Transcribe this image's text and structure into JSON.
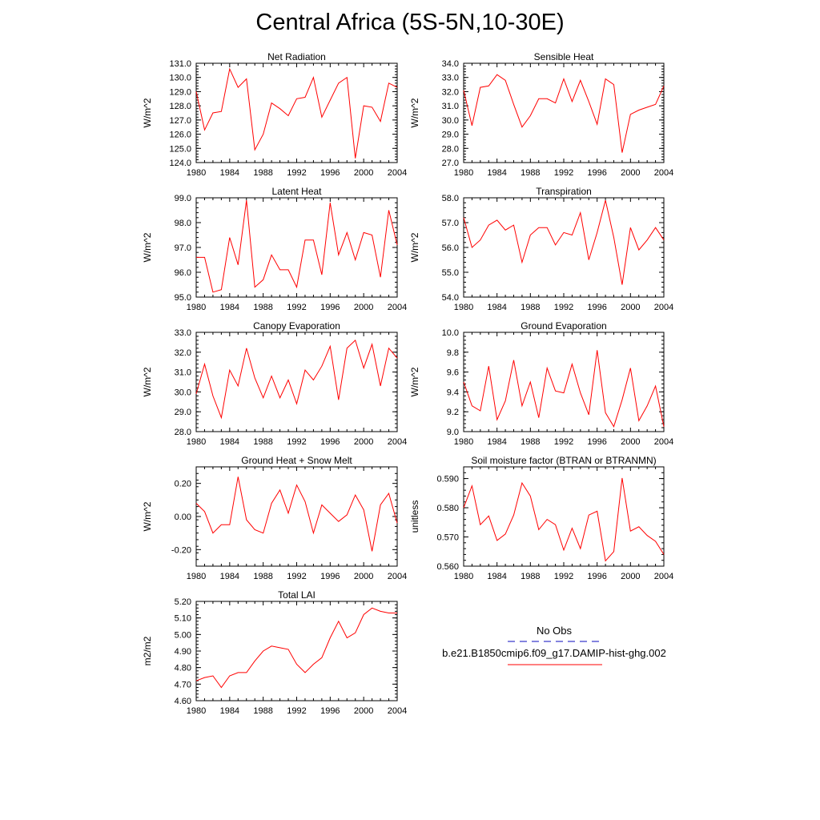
{
  "title": "Central Africa (5S-5N,10-30E)",
  "legend": {
    "obs_label": "No Obs",
    "obs_color": "#3a3acc",
    "model_label": "b.e21.B1850cmip6.f09_g17.DAMIP-hist-ghg.002",
    "model_color": "#ff0000"
  },
  "line_color": "#ff0000",
  "chart_data": [
    {
      "type": "line",
      "title": "Net Radiation",
      "xlabel": "",
      "ylabel": "W/m^2",
      "x": [
        1980,
        1981,
        1982,
        1983,
        1984,
        1985,
        1986,
        1987,
        1988,
        1989,
        1990,
        1991,
        1992,
        1993,
        1994,
        1995,
        1996,
        1997,
        1998,
        1999,
        2000,
        2001,
        2002,
        2003,
        2004
      ],
      "y": [
        129.0,
        126.3,
        127.5,
        127.6,
        130.6,
        129.3,
        129.9,
        124.9,
        126.0,
        128.2,
        127.8,
        127.3,
        128.5,
        128.6,
        130.0,
        127.2,
        128.4,
        129.6,
        130.0,
        124.3,
        128.0,
        127.9,
        126.9,
        129.6,
        129.3
      ],
      "xlim": [
        1980,
        2004
      ],
      "ylim": [
        124.0,
        131.0
      ],
      "xticks": [
        "1980",
        "1984",
        "1988",
        "1992",
        "1996",
        "2000",
        "2004"
      ],
      "yticks": [
        "124.0",
        "125.0",
        "126.0",
        "127.0",
        "128.0",
        "129.0",
        "130.0",
        "131.0"
      ],
      "ytick_values": [
        124,
        125,
        126,
        127,
        128,
        129,
        130,
        131
      ]
    },
    {
      "type": "line",
      "title": "Sensible Heat",
      "xlabel": "",
      "ylabel": "W/m^2",
      "x": [
        1980,
        1981,
        1982,
        1983,
        1984,
        1985,
        1986,
        1987,
        1988,
        1989,
        1990,
        1991,
        1992,
        1993,
        1994,
        1995,
        1996,
        1997,
        1998,
        1999,
        2000,
        2001,
        2002,
        2003,
        2004
      ],
      "y": [
        32.1,
        29.6,
        32.3,
        32.4,
        33.2,
        32.8,
        31.1,
        29.5,
        30.3,
        31.5,
        31.5,
        31.2,
        32.9,
        31.3,
        32.8,
        31.3,
        29.7,
        32.9,
        32.5,
        27.7,
        30.4,
        30.7,
        30.9,
        31.1,
        32.4
      ],
      "xlim": [
        1980,
        2004
      ],
      "ylim": [
        27.0,
        34.0
      ],
      "xticks": [
        "1980",
        "1984",
        "1988",
        "1992",
        "1996",
        "2000",
        "2004"
      ],
      "yticks": [
        "27.0",
        "28.0",
        "29.0",
        "30.0",
        "31.0",
        "32.0",
        "33.0",
        "34.0"
      ],
      "ytick_values": [
        27,
        28,
        29,
        30,
        31,
        32,
        33,
        34
      ]
    },
    {
      "type": "line",
      "title": "Latent Heat",
      "xlabel": "",
      "ylabel": "W/m^2",
      "x": [
        1980,
        1981,
        1982,
        1983,
        1984,
        1985,
        1986,
        1987,
        1988,
        1989,
        1990,
        1991,
        1992,
        1993,
        1994,
        1995,
        1996,
        1997,
        1998,
        1999,
        2000,
        2001,
        2002,
        2003,
        2004
      ],
      "y": [
        96.6,
        96.6,
        95.2,
        95.3,
        97.4,
        96.3,
        98.9,
        95.4,
        95.7,
        96.7,
        96.1,
        96.1,
        95.4,
        97.3,
        97.3,
        95.9,
        98.8,
        96.7,
        97.6,
        96.5,
        97.6,
        97.5,
        95.8,
        98.5,
        97.1
      ],
      "xlim": [
        1980,
        2004
      ],
      "ylim": [
        95.0,
        99.0
      ],
      "xticks": [
        "1980",
        "1984",
        "1988",
        "1992",
        "1996",
        "2000",
        "2004"
      ],
      "yticks": [
        "95.0",
        "96.0",
        "97.0",
        "98.0",
        "99.0"
      ],
      "ytick_values": [
        95,
        96,
        97,
        98,
        99
      ]
    },
    {
      "type": "line",
      "title": "Transpiration",
      "xlabel": "",
      "ylabel": "W/m^2",
      "x": [
        1980,
        1981,
        1982,
        1983,
        1984,
        1985,
        1986,
        1987,
        1988,
        1989,
        1990,
        1991,
        1992,
        1993,
        1994,
        1995,
        1996,
        1997,
        1998,
        1999,
        2000,
        2001,
        2002,
        2003,
        2004
      ],
      "y": [
        57.2,
        56.0,
        56.3,
        56.9,
        57.1,
        56.7,
        56.9,
        55.4,
        56.5,
        56.8,
        56.8,
        56.1,
        56.6,
        56.5,
        57.4,
        55.5,
        56.6,
        57.9,
        56.4,
        54.5,
        56.8,
        55.9,
        56.3,
        56.8,
        56.3
      ],
      "xlim": [
        1980,
        2004
      ],
      "ylim": [
        54.0,
        58.0
      ],
      "xticks": [
        "1980",
        "1984",
        "1988",
        "1992",
        "1996",
        "2000",
        "2004"
      ],
      "yticks": [
        "54.0",
        "55.0",
        "56.0",
        "57.0",
        "58.0"
      ],
      "ytick_values": [
        54,
        55,
        56,
        57,
        58
      ]
    },
    {
      "type": "line",
      "title": "Canopy Evaporation",
      "xlabel": "",
      "ylabel": "W/m^2",
      "x": [
        1980,
        1981,
        1982,
        1983,
        1984,
        1985,
        1986,
        1987,
        1988,
        1989,
        1990,
        1991,
        1992,
        1993,
        1994,
        1995,
        1996,
        1997,
        1998,
        1999,
        2000,
        2001,
        2002,
        2003,
        2004
      ],
      "y": [
        29.9,
        31.4,
        29.8,
        28.7,
        31.1,
        30.3,
        32.2,
        30.7,
        29.7,
        30.8,
        29.7,
        30.6,
        29.4,
        31.1,
        30.6,
        31.3,
        32.3,
        29.6,
        32.2,
        32.6,
        31.2,
        32.4,
        30.3,
        32.2,
        31.7
      ],
      "xlim": [
        1980,
        2004
      ],
      "ylim": [
        28.0,
        33.0
      ],
      "xticks": [
        "1980",
        "1984",
        "1988",
        "1992",
        "1996",
        "2000",
        "2004"
      ],
      "yticks": [
        "28.0",
        "29.0",
        "30.0",
        "31.0",
        "32.0",
        "33.0"
      ],
      "ytick_values": [
        28,
        29,
        30,
        31,
        32,
        33
      ]
    },
    {
      "type": "line",
      "title": "Ground Evaporation",
      "xlabel": "",
      "ylabel": "W/m^2",
      "x": [
        1980,
        1981,
        1982,
        1983,
        1984,
        1985,
        1986,
        1987,
        1988,
        1989,
        1990,
        1991,
        1992,
        1993,
        1994,
        1995,
        1996,
        1997,
        1998,
        1999,
        2000,
        2001,
        2002,
        2003,
        2004
      ],
      "y": [
        9.5,
        9.26,
        9.21,
        9.66,
        9.12,
        9.31,
        9.72,
        9.26,
        9.5,
        9.14,
        9.64,
        9.41,
        9.39,
        9.68,
        9.39,
        9.17,
        9.82,
        9.19,
        9.05,
        9.32,
        9.64,
        9.11,
        9.26,
        9.46,
        9.05
      ],
      "xlim": [
        1980,
        2004
      ],
      "ylim": [
        9.0,
        10.0
      ],
      "xticks": [
        "1980",
        "1984",
        "1988",
        "1992",
        "1996",
        "2000",
        "2004"
      ],
      "yticks": [
        "9.0",
        "9.2",
        "9.4",
        "9.6",
        "9.8",
        "10.0"
      ],
      "ytick_values": [
        9.0,
        9.2,
        9.4,
        9.6,
        9.8,
        10.0
      ]
    },
    {
      "type": "line",
      "title": "Ground Heat + Snow Melt",
      "xlabel": "",
      "ylabel": "W/m^2",
      "x": [
        1980,
        1981,
        1982,
        1983,
        1984,
        1985,
        1986,
        1987,
        1988,
        1989,
        1990,
        1991,
        1992,
        1993,
        1994,
        1995,
        1996,
        1997,
        1998,
        1999,
        2000,
        2001,
        2002,
        2003,
        2004
      ],
      "y": [
        0.08,
        0.03,
        -0.1,
        -0.05,
        -0.05,
        0.24,
        -0.02,
        -0.08,
        -0.1,
        0.08,
        0.16,
        0.02,
        0.19,
        0.09,
        -0.1,
        0.07,
        0.02,
        -0.03,
        0.01,
        0.13,
        0.04,
        -0.21,
        0.07,
        0.14,
        -0.04
      ],
      "xlim": [
        1980,
        2004
      ],
      "ylim": [
        -0.3,
        0.3
      ],
      "xticks": [
        "1980",
        "1984",
        "1988",
        "1992",
        "1996",
        "2000",
        "2004"
      ],
      "yticks": [
        "-0.20",
        "0.00",
        "0.20"
      ],
      "ytick_values": [
        -0.2,
        0.0,
        0.2
      ]
    },
    {
      "type": "line",
      "title": "Soil moisture factor (BTRAN or BTRANMN)",
      "xlabel": "",
      "ylabel": "unitless",
      "x": [
        1980,
        1981,
        1982,
        1983,
        1984,
        1985,
        1986,
        1987,
        1988,
        1989,
        1990,
        1991,
        1992,
        1993,
        1994,
        1995,
        1996,
        1997,
        1998,
        1999,
        2000,
        2001,
        2002,
        2003,
        2004
      ],
      "y": [
        0.58,
        0.5875,
        0.5742,
        0.5772,
        0.5688,
        0.571,
        0.5775,
        0.5885,
        0.584,
        0.5725,
        0.576,
        0.5742,
        0.5655,
        0.573,
        0.566,
        0.5775,
        0.5788,
        0.5618,
        0.565,
        0.5902,
        0.572,
        0.5735,
        0.5705,
        0.5685,
        0.564
      ],
      "xlim": [
        1980,
        2004
      ],
      "ylim": [
        0.56,
        0.594
      ],
      "xticks": [
        "1980",
        "1984",
        "1988",
        "1992",
        "1996",
        "2000",
        "2004"
      ],
      "yticks": [
        "0.560",
        "0.570",
        "0.580",
        "0.590"
      ],
      "ytick_values": [
        0.56,
        0.57,
        0.58,
        0.59
      ]
    },
    {
      "type": "line",
      "title": "Total LAI",
      "xlabel": "",
      "ylabel": "m2/m2",
      "x": [
        1980,
        1981,
        1982,
        1983,
        1984,
        1985,
        1986,
        1987,
        1988,
        1989,
        1990,
        1991,
        1992,
        1993,
        1994,
        1995,
        1996,
        1997,
        1998,
        1999,
        2000,
        2001,
        2002,
        2003,
        2004
      ],
      "y": [
        4.72,
        4.74,
        4.75,
        4.68,
        4.75,
        4.77,
        4.77,
        4.84,
        4.9,
        4.93,
        4.92,
        4.91,
        4.82,
        4.77,
        4.82,
        4.86,
        4.98,
        5.08,
        4.98,
        5.01,
        5.12,
        5.16,
        5.14,
        5.13,
        5.13
      ],
      "xlim": [
        1980,
        2004
      ],
      "ylim": [
        4.6,
        5.2
      ],
      "xticks": [
        "1980",
        "1984",
        "1988",
        "1992",
        "1996",
        "2000",
        "2004"
      ],
      "yticks": [
        "4.60",
        "4.70",
        "4.80",
        "4.90",
        "5.00",
        "5.10",
        "5.20"
      ],
      "ytick_values": [
        4.6,
        4.7,
        4.8,
        4.9,
        5.0,
        5.1,
        5.2
      ]
    }
  ]
}
